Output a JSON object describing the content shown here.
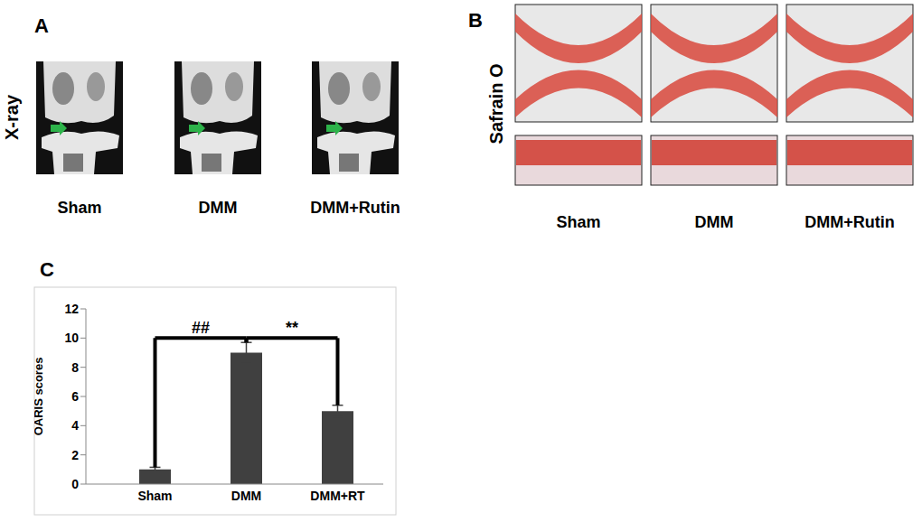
{
  "panels": [
    {
      "label": "A",
      "row_label": "X-ray",
      "captions": [
        "Sham",
        "DMM",
        "DMM+Rutin"
      ]
    },
    {
      "label": "B",
      "row_label": "Safrain O",
      "captions": [
        "Sham",
        "DMM",
        "DMM+Rutin"
      ]
    },
    {
      "label": "C"
    }
  ],
  "chart_data": {
    "type": "bar",
    "categories": [
      "Sham",
      "DMM",
      "DMM+RT"
    ],
    "values": [
      1,
      9,
      5
    ],
    "errors": [
      0.15,
      0.7,
      0.4
    ],
    "color": "#404040",
    "ylabel": "OARIS scores",
    "ylim": [
      0,
      12
    ],
    "yticks": [
      0,
      2,
      4,
      6,
      8,
      10,
      12
    ],
    "grid": false,
    "annotations": [
      {
        "text": "##",
        "from": "Sham",
        "to": "DMM",
        "y": 10
      },
      {
        "text": "**",
        "from": "DMM",
        "to": "DMM+RT",
        "y": 10
      }
    ]
  }
}
